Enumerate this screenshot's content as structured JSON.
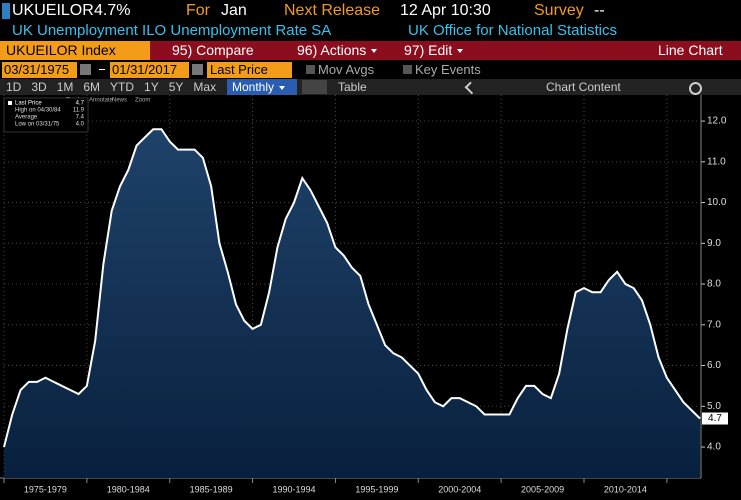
{
  "header": {
    "ticker": "UKUEILOR",
    "value": "4.7%",
    "period_label": "For",
    "period": "Jan",
    "release_label": "Next Release",
    "release": "12 Apr 10:30",
    "survey_label": "Survey",
    "survey": "--",
    "description": "UK Unemployment ILO Unemployment Rate SA",
    "source": "UK Office for National Statistics"
  },
  "menu": {
    "security": "UKUEILOR Index",
    "compare": "95) Compare",
    "actions": "96) Actions",
    "edit": "97) Edit",
    "view": "Line Chart"
  },
  "controls": {
    "start_date": "03/31/1975",
    "end_date": "01/31/2017",
    "field": "Last Price",
    "mov_avgs": "Mov Avgs",
    "key_events": "Key Events"
  },
  "ranges": [
    "1D",
    "3D",
    "1M",
    "6M",
    "YTD",
    "1Y",
    "5Y",
    "Max"
  ],
  "frequency": "Monthly",
  "table": "Table",
  "chart_content": "Chart Content",
  "tools": [
    "Track",
    "Annotate",
    "News",
    "Zoom"
  ],
  "chart_data": {
    "type": "area",
    "categories": [
      null,
      null,
      null,
      null,
      null,
      "1975-1979",
      null,
      null,
      null,
      null,
      null,
      null,
      null,
      null,
      null,
      "1980-1984",
      null,
      null,
      null,
      null,
      null,
      null,
      null,
      null,
      null,
      "1985-1989",
      null,
      null,
      null,
      null,
      null,
      null,
      null,
      null,
      null,
      "1990-1994",
      null,
      null,
      null,
      null,
      null,
      null,
      null,
      null,
      null,
      "1995-1999",
      null,
      null,
      null,
      null,
      null,
      null,
      null,
      null,
      null,
      "2000-2004",
      null,
      null,
      null,
      null,
      null,
      null,
      null,
      null,
      null,
      "2005-2009",
      null,
      null,
      null,
      null,
      null,
      null,
      null,
      null,
      null,
      "2010-2014",
      null,
      null,
      null,
      null,
      null,
      null,
      null,
      null,
      null
    ],
    "series": [
      {
        "name": "Last Price",
        "color": "#ffffff",
        "values": [
          4.0,
          4.8,
          5.4,
          5.6,
          5.6,
          5.7,
          5.6,
          5.5,
          5.4,
          5.3,
          5.5,
          6.6,
          8.5,
          9.8,
          10.4,
          10.8,
          11.4,
          11.6,
          11.8,
          11.8,
          11.5,
          11.3,
          11.3,
          11.3,
          11.1,
          10.4,
          9.0,
          8.3,
          7.5,
          7.1,
          6.9,
          7.0,
          7.8,
          8.9,
          9.6,
          10.0,
          10.6,
          10.3,
          9.9,
          9.5,
          8.9,
          8.7,
          8.4,
          8.2,
          7.5,
          7.0,
          6.5,
          6.3,
          6.2,
          6.0,
          5.8,
          5.4,
          5.1,
          5.0,
          5.2,
          5.2,
          5.1,
          5.0,
          4.8,
          4.8,
          4.8,
          4.8,
          5.2,
          5.5,
          5.5,
          5.3,
          5.2,
          5.8,
          6.9,
          7.8,
          7.9,
          7.8,
          7.8,
          8.1,
          8.3,
          8.0,
          7.9,
          7.6,
          7.0,
          6.2,
          5.7,
          5.4,
          5.1,
          4.9,
          4.7
        ]
      }
    ],
    "last_value_label": "4.7",
    "legend_stats": [
      {
        "label": "High on 04/30/84",
        "value": "11.9"
      },
      {
        "label": "Average",
        "value": "7.4"
      },
      {
        "label": "Low on 03/31/75",
        "value": "4.0"
      }
    ],
    "ylim": [
      3.24,
      12.64
    ],
    "yticks": [
      {
        "value": 4,
        "label": "4.0"
      },
      {
        "value": 5,
        "label": "5.0"
      },
      {
        "value": 6,
        "label": "6.0"
      },
      {
        "value": 7,
        "label": "7.0"
      },
      {
        "value": 8,
        "label": "8.0"
      },
      {
        "value": 9,
        "label": "9.0"
      },
      {
        "value": 10,
        "label": "10.0"
      },
      {
        "value": 11,
        "label": "11.0"
      },
      {
        "value": 12,
        "label": "12.0"
      }
    ],
    "grid": true
  }
}
